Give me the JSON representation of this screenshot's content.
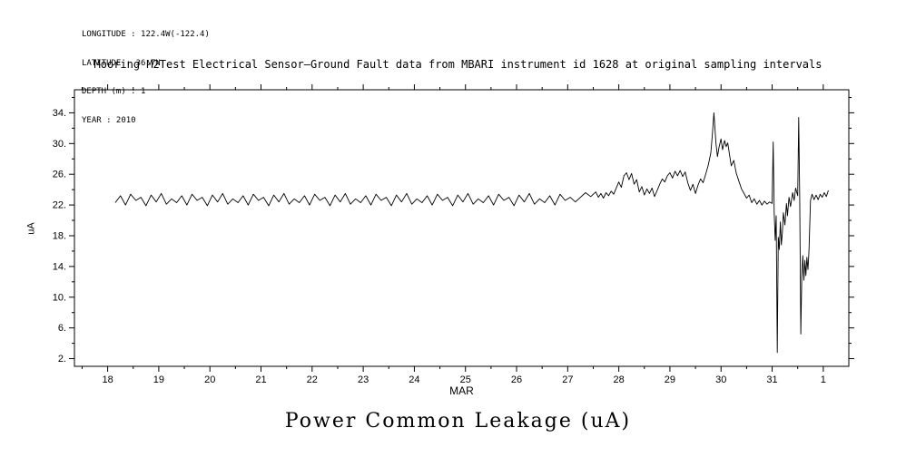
{
  "header": {
    "longitude": "LONGITUDE : 122.4W(-122.4)",
    "latitude": "LATITUDE : 36.7N",
    "depth": "DEPTH (m) : 1",
    "year": "YEAR : 2010"
  },
  "caption": "Power Common Leakage (uA)",
  "chart_data": {
    "type": "line",
    "title": "Mooring M2Test Electrical Sensor–Ground Fault data from MBARI instrument id 1628 at original sampling intervals",
    "xlabel": "MAR",
    "ylabel": "uA",
    "xbox": [
      17.35,
      32.5
    ],
    "ybox": [
      1.0,
      37.0
    ],
    "xtick_values": [
      18,
      19,
      20,
      21,
      22,
      23,
      24,
      25,
      26,
      27,
      28,
      29,
      30,
      31,
      32
    ],
    "xtick_labels": [
      "18",
      "19",
      "20",
      "21",
      "22",
      "23",
      "24",
      "25",
      "26",
      "27",
      "28",
      "29",
      "30",
      "31",
      "1"
    ],
    "ytick_values": [
      2,
      6,
      10,
      14,
      18,
      22,
      26,
      30,
      34
    ],
    "ytick_labels": [
      "2.",
      "6.",
      "10.",
      "14.",
      "18.",
      "22.",
      "26.",
      "30.",
      "34."
    ],
    "x_minor_step": 0.5,
    "y_minor_step": 2,
    "grid": false,
    "legend": "none",
    "line_color": "#000000",
    "points": [
      [
        18.15,
        22.3
      ],
      [
        18.25,
        23.2
      ],
      [
        18.35,
        22.0
      ],
      [
        18.45,
        23.4
      ],
      [
        18.55,
        22.6
      ],
      [
        18.65,
        23.0
      ],
      [
        18.75,
        21.9
      ],
      [
        18.85,
        23.3
      ],
      [
        18.95,
        22.4
      ],
      [
        19.05,
        23.5
      ],
      [
        19.15,
        22.1
      ],
      [
        19.25,
        22.8
      ],
      [
        19.35,
        22.3
      ],
      [
        19.45,
        23.2
      ],
      [
        19.55,
        22.0
      ],
      [
        19.65,
        23.4
      ],
      [
        19.75,
        22.6
      ],
      [
        19.85,
        23.0
      ],
      [
        19.95,
        21.9
      ],
      [
        20.05,
        23.3
      ],
      [
        20.15,
        22.4
      ],
      [
        20.25,
        23.5
      ],
      [
        20.35,
        22.1
      ],
      [
        20.45,
        22.8
      ],
      [
        20.55,
        22.3
      ],
      [
        20.65,
        23.2
      ],
      [
        20.75,
        22.0
      ],
      [
        20.85,
        23.4
      ],
      [
        20.95,
        22.6
      ],
      [
        21.05,
        23.0
      ],
      [
        21.15,
        21.9
      ],
      [
        21.25,
        23.3
      ],
      [
        21.35,
        22.4
      ],
      [
        21.45,
        23.5
      ],
      [
        21.55,
        22.1
      ],
      [
        21.65,
        22.8
      ],
      [
        21.75,
        22.3
      ],
      [
        21.85,
        23.2
      ],
      [
        21.95,
        22.0
      ],
      [
        22.05,
        23.4
      ],
      [
        22.15,
        22.6
      ],
      [
        22.25,
        23.0
      ],
      [
        22.35,
        21.9
      ],
      [
        22.45,
        23.3
      ],
      [
        22.55,
        22.4
      ],
      [
        22.65,
        23.5
      ],
      [
        22.75,
        22.1
      ],
      [
        22.85,
        22.8
      ],
      [
        22.95,
        22.3
      ],
      [
        23.05,
        23.2
      ],
      [
        23.15,
        22.0
      ],
      [
        23.25,
        23.4
      ],
      [
        23.35,
        22.6
      ],
      [
        23.45,
        23.0
      ],
      [
        23.55,
        21.9
      ],
      [
        23.65,
        23.3
      ],
      [
        23.75,
        22.4
      ],
      [
        23.85,
        23.5
      ],
      [
        23.95,
        22.1
      ],
      [
        24.05,
        22.8
      ],
      [
        24.15,
        22.3
      ],
      [
        24.25,
        23.2
      ],
      [
        24.35,
        22.0
      ],
      [
        24.45,
        23.4
      ],
      [
        24.55,
        22.6
      ],
      [
        24.65,
        23.0
      ],
      [
        24.75,
        21.9
      ],
      [
        24.85,
        23.3
      ],
      [
        24.95,
        22.4
      ],
      [
        25.05,
        23.5
      ],
      [
        25.15,
        22.1
      ],
      [
        25.25,
        22.8
      ],
      [
        25.35,
        22.3
      ],
      [
        25.45,
        23.2
      ],
      [
        25.55,
        22.0
      ],
      [
        25.65,
        23.4
      ],
      [
        25.75,
        22.6
      ],
      [
        25.85,
        23.0
      ],
      [
        25.95,
        21.9
      ],
      [
        26.05,
        23.3
      ],
      [
        26.15,
        22.4
      ],
      [
        26.25,
        23.5
      ],
      [
        26.35,
        22.1
      ],
      [
        26.45,
        22.8
      ],
      [
        26.55,
        22.3
      ],
      [
        26.65,
        23.2
      ],
      [
        26.75,
        22.0
      ],
      [
        26.85,
        23.4
      ],
      [
        26.95,
        22.6
      ],
      [
        27.05,
        23.0
      ],
      [
        27.15,
        22.4
      ],
      [
        27.25,
        23.0
      ],
      [
        27.35,
        23.6
      ],
      [
        27.45,
        23.1
      ],
      [
        27.55,
        23.7
      ],
      [
        27.6,
        23.0
      ],
      [
        27.65,
        23.5
      ],
      [
        27.7,
        22.9
      ],
      [
        27.75,
        23.6
      ],
      [
        27.8,
        23.2
      ],
      [
        27.85,
        23.8
      ],
      [
        27.9,
        23.4
      ],
      [
        27.95,
        24.2
      ],
      [
        28.0,
        25.0
      ],
      [
        28.05,
        24.3
      ],
      [
        28.1,
        25.8
      ],
      [
        28.15,
        26.2
      ],
      [
        28.2,
        25.3
      ],
      [
        28.25,
        26.1
      ],
      [
        28.3,
        24.7
      ],
      [
        28.35,
        25.3
      ],
      [
        28.4,
        23.7
      ],
      [
        28.45,
        24.4
      ],
      [
        28.5,
        23.3
      ],
      [
        28.55,
        24.1
      ],
      [
        28.6,
        23.5
      ],
      [
        28.65,
        24.2
      ],
      [
        28.7,
        23.1
      ],
      [
        28.75,
        23.9
      ],
      [
        28.8,
        24.7
      ],
      [
        28.85,
        25.4
      ],
      [
        28.9,
        25.0
      ],
      [
        28.95,
        25.8
      ],
      [
        29.0,
        26.2
      ],
      [
        29.05,
        25.5
      ],
      [
        29.1,
        26.4
      ],
      [
        29.15,
        25.8
      ],
      [
        29.2,
        26.5
      ],
      [
        29.25,
        25.7
      ],
      [
        29.3,
        26.3
      ],
      [
        29.35,
        24.9
      ],
      [
        29.4,
        23.9
      ],
      [
        29.45,
        24.7
      ],
      [
        29.5,
        23.5
      ],
      [
        29.55,
        24.6
      ],
      [
        29.6,
        25.4
      ],
      [
        29.65,
        24.9
      ],
      [
        29.7,
        26.0
      ],
      [
        29.75,
        27.2
      ],
      [
        29.8,
        28.8
      ],
      [
        29.83,
        31.2
      ],
      [
        29.86,
        34.0
      ],
      [
        29.9,
        30.1
      ],
      [
        29.93,
        28.3
      ],
      [
        29.96,
        29.5
      ],
      [
        30.0,
        30.6
      ],
      [
        30.03,
        29.2
      ],
      [
        30.07,
        30.4
      ],
      [
        30.1,
        29.6
      ],
      [
        30.13,
        30.1
      ],
      [
        30.17,
        28.4
      ],
      [
        30.2,
        27.1
      ],
      [
        30.25,
        27.8
      ],
      [
        30.3,
        26.1
      ],
      [
        30.35,
        25.1
      ],
      [
        30.4,
        24.1
      ],
      [
        30.45,
        23.5
      ],
      [
        30.5,
        22.9
      ],
      [
        30.55,
        23.3
      ],
      [
        30.6,
        22.3
      ],
      [
        30.65,
        22.8
      ],
      [
        30.7,
        22.1
      ],
      [
        30.75,
        22.6
      ],
      [
        30.8,
        22.0
      ],
      [
        30.85,
        22.5
      ],
      [
        30.9,
        22.1
      ],
      [
        30.95,
        22.4
      ],
      [
        31.0,
        22.2
      ],
      [
        31.02,
        30.2
      ],
      [
        31.04,
        21.0
      ],
      [
        31.06,
        17.4
      ],
      [
        31.08,
        20.6
      ],
      [
        31.1,
        2.8
      ],
      [
        31.12,
        17.8
      ],
      [
        31.14,
        16.2
      ],
      [
        31.16,
        19.8
      ],
      [
        31.18,
        16.8
      ],
      [
        31.2,
        18.4
      ],
      [
        31.22,
        21.0
      ],
      [
        31.25,
        19.4
      ],
      [
        31.28,
        22.2
      ],
      [
        31.3,
        20.6
      ],
      [
        31.33,
        23.0
      ],
      [
        31.36,
        21.8
      ],
      [
        31.4,
        23.6
      ],
      [
        31.43,
        22.6
      ],
      [
        31.46,
        24.2
      ],
      [
        31.5,
        23.2
      ],
      [
        31.52,
        33.4
      ],
      [
        31.54,
        23.0
      ],
      [
        31.56,
        5.2
      ],
      [
        31.58,
        12.6
      ],
      [
        31.6,
        15.4
      ],
      [
        31.62,
        12.2
      ],
      [
        31.64,
        14.8
      ],
      [
        31.66,
        12.8
      ],
      [
        31.68,
        15.2
      ],
      [
        31.7,
        13.6
      ],
      [
        31.72,
        16.0
      ],
      [
        31.75,
        22.6
      ],
      [
        31.78,
        23.4
      ],
      [
        31.82,
        22.7
      ],
      [
        31.86,
        23.3
      ],
      [
        31.9,
        22.7
      ],
      [
        31.94,
        23.4
      ],
      [
        31.98,
        23.0
      ],
      [
        32.02,
        23.6
      ],
      [
        32.06,
        23.1
      ],
      [
        32.1,
        23.9
      ]
    ]
  }
}
